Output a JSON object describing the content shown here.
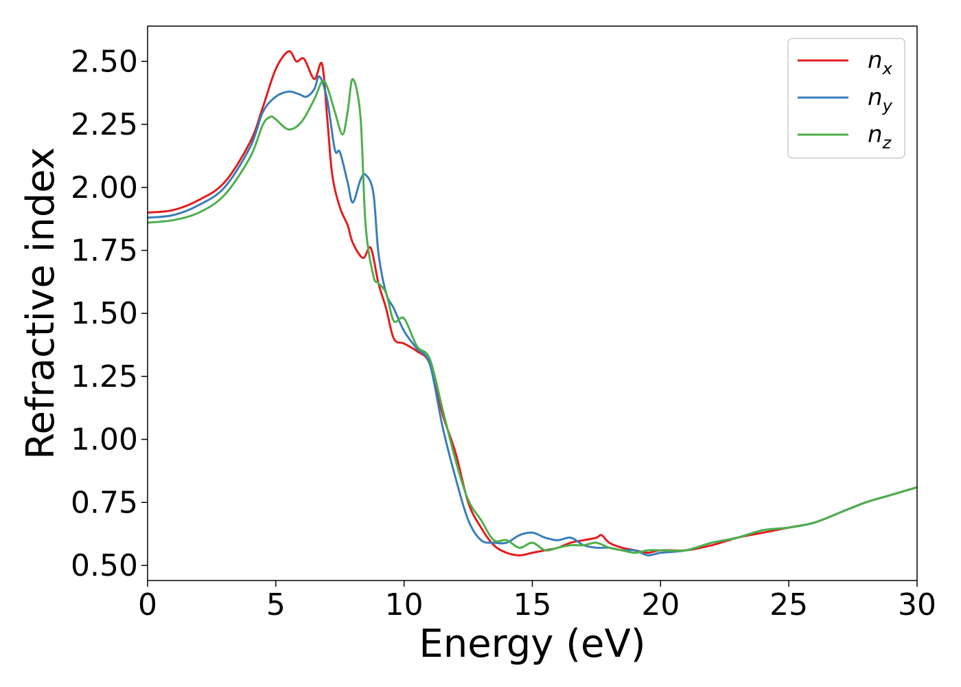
{
  "chart_data": {
    "type": "line",
    "xlabel": "Energy (eV)",
    "ylabel": "Refractive index",
    "xlim": [
      0,
      30
    ],
    "ylim": [
      0.44,
      2.64
    ],
    "xticks": [
      0,
      5,
      10,
      15,
      20,
      25,
      30
    ],
    "xtick_labels": [
      "0",
      "5",
      "10",
      "15",
      "20",
      "25",
      "30"
    ],
    "yticks": [
      0.5,
      0.75,
      1.0,
      1.25,
      1.5,
      1.75,
      2.0,
      2.25,
      2.5
    ],
    "ytick_labels": [
      "0.50",
      "0.75",
      "1.00",
      "1.25",
      "1.50",
      "1.75",
      "2.00",
      "2.25",
      "2.50"
    ],
    "grid": false,
    "legend_position": "top-right",
    "series": [
      {
        "name": "n",
        "subscript": "x",
        "color": "#e41a1c",
        "points": [
          [
            0,
            1.9
          ],
          [
            1,
            1.91
          ],
          [
            2,
            1.95
          ],
          [
            3,
            2.02
          ],
          [
            4,
            2.18
          ],
          [
            4.5,
            2.32
          ],
          [
            5,
            2.47
          ],
          [
            5.5,
            2.54
          ],
          [
            5.8,
            2.5
          ],
          [
            6.1,
            2.51
          ],
          [
            6.5,
            2.43
          ],
          [
            6.8,
            2.49
          ],
          [
            7.0,
            2.28
          ],
          [
            7.2,
            2.05
          ],
          [
            7.5,
            1.92
          ],
          [
            7.8,
            1.85
          ],
          [
            8.0,
            1.78
          ],
          [
            8.4,
            1.72
          ],
          [
            8.7,
            1.76
          ],
          [
            9.0,
            1.62
          ],
          [
            9.3,
            1.52
          ],
          [
            9.6,
            1.4
          ],
          [
            10.0,
            1.38
          ],
          [
            10.5,
            1.35
          ],
          [
            11.0,
            1.3
          ],
          [
            11.5,
            1.1
          ],
          [
            12.0,
            0.95
          ],
          [
            12.5,
            0.75
          ],
          [
            13.0,
            0.65
          ],
          [
            13.5,
            0.58
          ],
          [
            14.0,
            0.55
          ],
          [
            14.5,
            0.54
          ],
          [
            15.0,
            0.55
          ],
          [
            15.5,
            0.56
          ],
          [
            16.0,
            0.57
          ],
          [
            16.5,
            0.59
          ],
          [
            17.0,
            0.6
          ],
          [
            17.5,
            0.61
          ],
          [
            17.7,
            0.62
          ],
          [
            18.0,
            0.59
          ],
          [
            18.5,
            0.57
          ],
          [
            19.0,
            0.56
          ],
          [
            19.5,
            0.55
          ],
          [
            20.0,
            0.56
          ],
          [
            21.0,
            0.56
          ],
          [
            22.0,
            0.58
          ],
          [
            23.0,
            0.61
          ],
          [
            24.0,
            0.63
          ],
          [
            25.0,
            0.65
          ],
          [
            26.0,
            0.67
          ],
          [
            27.0,
            0.71
          ],
          [
            28.0,
            0.75
          ],
          [
            29.0,
            0.78
          ],
          [
            30.0,
            0.81
          ]
        ]
      },
      {
        "name": "n",
        "subscript": "y",
        "color": "#377eb8",
        "points": [
          [
            0,
            1.88
          ],
          [
            1,
            1.89
          ],
          [
            2,
            1.93
          ],
          [
            3,
            2.0
          ],
          [
            4,
            2.16
          ],
          [
            4.5,
            2.3
          ],
          [
            5,
            2.36
          ],
          [
            5.5,
            2.38
          ],
          [
            5.9,
            2.37
          ],
          [
            6.2,
            2.36
          ],
          [
            6.5,
            2.39
          ],
          [
            6.7,
            2.44
          ],
          [
            7.0,
            2.35
          ],
          [
            7.3,
            2.15
          ],
          [
            7.5,
            2.14
          ],
          [
            7.8,
            2.02
          ],
          [
            8.0,
            1.94
          ],
          [
            8.3,
            2.03
          ],
          [
            8.5,
            2.05
          ],
          [
            8.8,
            1.98
          ],
          [
            9.0,
            1.74
          ],
          [
            9.3,
            1.58
          ],
          [
            9.6,
            1.52
          ],
          [
            10.0,
            1.43
          ],
          [
            10.5,
            1.36
          ],
          [
            11.0,
            1.3
          ],
          [
            11.5,
            1.05
          ],
          [
            12.0,
            0.85
          ],
          [
            12.5,
            0.68
          ],
          [
            13.0,
            0.6
          ],
          [
            13.5,
            0.59
          ],
          [
            14.0,
            0.59
          ],
          [
            14.5,
            0.62
          ],
          [
            15.0,
            0.63
          ],
          [
            15.5,
            0.61
          ],
          [
            16.0,
            0.6
          ],
          [
            16.5,
            0.61
          ],
          [
            17.0,
            0.58
          ],
          [
            17.5,
            0.57
          ],
          [
            18.0,
            0.57
          ],
          [
            18.5,
            0.56
          ],
          [
            19.0,
            0.56
          ],
          [
            19.5,
            0.54
          ],
          [
            20.0,
            0.55
          ],
          [
            21.0,
            0.56
          ],
          [
            22.0,
            0.59
          ],
          [
            23.0,
            0.61
          ],
          [
            24.0,
            0.64
          ],
          [
            25.0,
            0.65
          ],
          [
            26.0,
            0.67
          ],
          [
            27.0,
            0.71
          ],
          [
            28.0,
            0.75
          ],
          [
            29.0,
            0.78
          ],
          [
            30.0,
            0.81
          ]
        ]
      },
      {
        "name": "n",
        "subscript": "z",
        "color": "#4daf4a",
        "points": [
          [
            0,
            1.86
          ],
          [
            1,
            1.87
          ],
          [
            2,
            1.9
          ],
          [
            3,
            1.97
          ],
          [
            4,
            2.12
          ],
          [
            4.5,
            2.25
          ],
          [
            4.8,
            2.28
          ],
          [
            5.0,
            2.27
          ],
          [
            5.5,
            2.23
          ],
          [
            6.0,
            2.26
          ],
          [
            6.5,
            2.35
          ],
          [
            6.8,
            2.42
          ],
          [
            7.0,
            2.4
          ],
          [
            7.3,
            2.3
          ],
          [
            7.6,
            2.21
          ],
          [
            7.8,
            2.3
          ],
          [
            8.0,
            2.43
          ],
          [
            8.3,
            2.28
          ],
          [
            8.5,
            1.85
          ],
          [
            8.8,
            1.65
          ],
          [
            9.0,
            1.62
          ],
          [
            9.3,
            1.58
          ],
          [
            9.6,
            1.47
          ],
          [
            10.0,
            1.48
          ],
          [
            10.5,
            1.37
          ],
          [
            11.0,
            1.32
          ],
          [
            11.5,
            1.12
          ],
          [
            12.0,
            0.92
          ],
          [
            12.5,
            0.76
          ],
          [
            13.0,
            0.68
          ],
          [
            13.5,
            0.6
          ],
          [
            14.0,
            0.6
          ],
          [
            14.5,
            0.57
          ],
          [
            15.0,
            0.59
          ],
          [
            15.5,
            0.56
          ],
          [
            16.0,
            0.57
          ],
          [
            16.5,
            0.58
          ],
          [
            17.0,
            0.58
          ],
          [
            17.5,
            0.59
          ],
          [
            18.0,
            0.57
          ],
          [
            18.5,
            0.56
          ],
          [
            19.0,
            0.55
          ],
          [
            19.5,
            0.56
          ],
          [
            20.0,
            0.56
          ],
          [
            21.0,
            0.56
          ],
          [
            22.0,
            0.59
          ],
          [
            23.0,
            0.61
          ],
          [
            24.0,
            0.64
          ],
          [
            25.0,
            0.65
          ],
          [
            26.0,
            0.67
          ],
          [
            27.0,
            0.71
          ],
          [
            28.0,
            0.75
          ],
          [
            29.0,
            0.78
          ],
          [
            30.0,
            0.81
          ]
        ]
      }
    ]
  }
}
